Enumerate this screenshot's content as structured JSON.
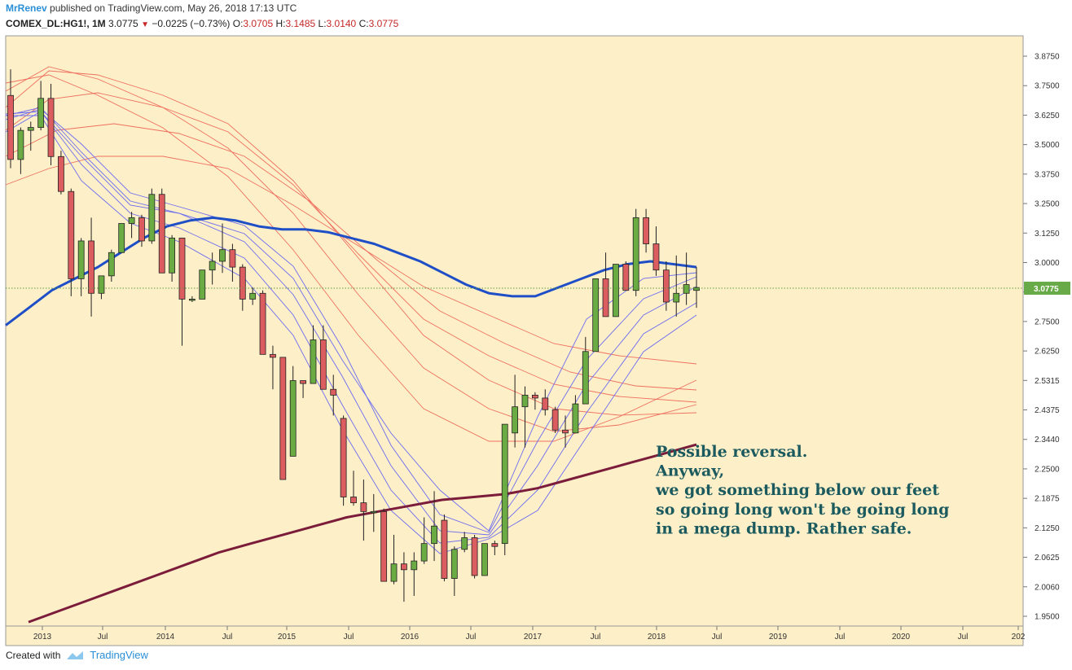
{
  "header": {
    "user": "MrRenev",
    "published": "published on TradingView.com, May 26, 2018 17:13 UTC",
    "symbol": "COMEX_DL:HG1!, 1M",
    "last": "3.0775",
    "change": "−0.0225 (−0.73%)",
    "o_label": "O:",
    "o_value": "3.0705",
    "h_label": "H:",
    "h_value": "3.1485",
    "l_label": "L:",
    "l_value": "3.0140",
    "c_label": "C:",
    "c_value": "3.0775"
  },
  "footer": {
    "created_with": "Created with",
    "brand": "TradingView"
  },
  "colors": {
    "background": "#fdefc8",
    "up": "#6aac43",
    "down": "#db5d5f",
    "ma_blue": "#1f4fc7",
    "ma_maroon": "#7b1c3a",
    "ribbon_blue": "#6c6cf0",
    "ribbon_red": "#ee7060",
    "price_label": "#68aa47"
  },
  "chart_data": {
    "type": "candlestick",
    "symbol": "COMEX_DL:HG1!",
    "interval": "1M",
    "last_price_label": "3.0775",
    "y_ticks": [
      "3.8750",
      "3.7500",
      "3.6250",
      "3.5000",
      "3.3750",
      "3.2500",
      "3.1250",
      "3.0000",
      "2.8750",
      "2.7500",
      "2.6250",
      "2.5315",
      "2.4375",
      "2.3440",
      "2.2500",
      "2.1875",
      "2.1250",
      "2.0625",
      "2.0060",
      "1.9500"
    ],
    "x_ticks": [
      "2013",
      "Jul",
      "2014",
      "Jul",
      "2015",
      "Jul",
      "2016",
      "Jul",
      "2017",
      "Jul",
      "2018",
      "Jul",
      "2019",
      "Jul",
      "2020",
      "Jul",
      "202"
    ],
    "candles_ohlc": [
      [
        3.74,
        3.83,
        3.49,
        3.52
      ],
      [
        3.52,
        3.63,
        3.47,
        3.62
      ],
      [
        3.62,
        3.65,
        3.55,
        3.63
      ],
      [
        3.63,
        3.79,
        3.62,
        3.73
      ],
      [
        3.73,
        3.78,
        3.5,
        3.53
      ],
      [
        3.53,
        3.55,
        3.4,
        3.41
      ],
      [
        3.41,
        3.42,
        3.05,
        3.11
      ],
      [
        3.11,
        3.25,
        3.05,
        3.24
      ],
      [
        3.24,
        3.32,
        2.98,
        3.06
      ],
      [
        3.06,
        3.1,
        3.04,
        3.12
      ],
      [
        3.12,
        3.21,
        3.1,
        3.2
      ],
      [
        3.2,
        3.26,
        3.2,
        3.3
      ],
      [
        3.3,
        3.34,
        3.25,
        3.32
      ],
      [
        3.32,
        3.33,
        3.22,
        3.24
      ],
      [
        3.24,
        3.42,
        3.23,
        3.4
      ],
      [
        3.4,
        3.42,
        3.13,
        3.13
      ],
      [
        3.13,
        3.26,
        3.1,
        3.25
      ],
      [
        3.25,
        3.25,
        2.88,
        3.04
      ],
      [
        3.04,
        3.05,
        3.03,
        3.04
      ],
      [
        3.04,
        3.1,
        3.04,
        3.14
      ],
      [
        3.14,
        3.2,
        3.09,
        3.17
      ],
      [
        3.17,
        3.3,
        3.13,
        3.21
      ],
      [
        3.21,
        3.23,
        3.1,
        3.15
      ],
      [
        3.15,
        3.16,
        3.0,
        3.04
      ],
      [
        3.04,
        3.08,
        3.02,
        3.06
      ],
      [
        3.06,
        3.07,
        2.87,
        2.85
      ],
      [
        2.85,
        2.88,
        2.73,
        2.84
      ],
      [
        2.84,
        2.84,
        2.43,
        2.42
      ],
      [
        2.5,
        2.81,
        2.5,
        2.76
      ],
      [
        2.76,
        2.76,
        2.7,
        2.75
      ],
      [
        2.75,
        2.95,
        2.75,
        2.9
      ],
      [
        2.9,
        2.95,
        2.75,
        2.73
      ],
      [
        2.73,
        2.78,
        2.64,
        2.71
      ],
      [
        2.63,
        2.64,
        2.33,
        2.36
      ],
      [
        2.36,
        2.45,
        2.33,
        2.34
      ],
      [
        2.34,
        2.42,
        2.21,
        2.31
      ],
      [
        2.31,
        2.37,
        2.24,
        2.31
      ],
      [
        2.31,
        2.32,
        2.08,
        2.07
      ],
      [
        2.07,
        2.23,
        2.06,
        2.13
      ],
      [
        2.13,
        2.17,
        2.0,
        2.11
      ],
      [
        2.11,
        2.17,
        2.02,
        2.14
      ],
      [
        2.14,
        2.29,
        2.13,
        2.2
      ],
      [
        2.2,
        2.38,
        2.14,
        2.26
      ],
      [
        2.28,
        2.3,
        2.07,
        2.08
      ],
      [
        2.08,
        2.19,
        2.02,
        2.18
      ],
      [
        2.18,
        2.24,
        2.17,
        2.22
      ],
      [
        2.22,
        2.23,
        2.08,
        2.09
      ],
      [
        2.09,
        2.2,
        2.1,
        2.2
      ],
      [
        2.2,
        2.21,
        2.16,
        2.19
      ],
      [
        2.2,
        2.61,
        2.16,
        2.61
      ],
      [
        2.58,
        2.78,
        2.53,
        2.67
      ],
      [
        2.67,
        2.74,
        2.53,
        2.71
      ],
      [
        2.71,
        2.72,
        2.66,
        2.7
      ],
      [
        2.7,
        2.73,
        2.64,
        2.66
      ],
      [
        2.66,
        2.67,
        2.58,
        2.59
      ],
      [
        2.59,
        2.64,
        2.53,
        2.58
      ],
      [
        2.58,
        2.71,
        2.58,
        2.68
      ],
      [
        2.68,
        2.91,
        2.68,
        2.86
      ],
      [
        2.86,
        3.09,
        2.86,
        3.11
      ],
      [
        3.11,
        3.2,
        3.0,
        2.98
      ],
      [
        2.98,
        3.15,
        2.98,
        3.16
      ],
      [
        3.16,
        3.17,
        3.08,
        3.07
      ],
      [
        3.07,
        3.35,
        3.05,
        3.32
      ],
      [
        3.32,
        3.35,
        3.2,
        3.23
      ],
      [
        3.23,
        3.29,
        3.12,
        3.14
      ],
      [
        3.14,
        3.17,
        3.0,
        3.03
      ],
      [
        3.03,
        3.19,
        2.98,
        3.06
      ],
      [
        3.06,
        3.2,
        3.02,
        3.09
      ],
      [
        3.07,
        3.15,
        3.01,
        3.08
      ]
    ],
    "moving_averages": [
      {
        "color": "#1f4fc7",
        "values": [
          2.95,
          3.01,
          3.07,
          3.11,
          3.15,
          3.2,
          3.25,
          3.29,
          3.31,
          3.32,
          3.31,
          3.29,
          3.28,
          3.28,
          3.27,
          3.25,
          3.23,
          3.2,
          3.17,
          3.13,
          3.09,
          3.06,
          3.05,
          3.05,
          3.08,
          3.11,
          3.14,
          3.16,
          3.17,
          3.16,
          3.15
        ]
      },
      {
        "color": "#7b1c3a",
        "values": [
          1.93,
          1.97,
          2.01,
          2.05,
          2.09,
          2.13,
          2.17,
          2.2,
          2.23,
          2.26,
          2.29,
          2.31,
          2.33,
          2.35,
          2.36,
          2.37,
          2.39,
          2.42,
          2.45,
          2.48,
          2.51,
          2.54
        ]
      }
    ],
    "annotation": [
      "Possible reversal.",
      "Anyway,",
      "we got something below our feet",
      "so going long won't be going long",
      "in a mega dump. Rather safe."
    ]
  }
}
